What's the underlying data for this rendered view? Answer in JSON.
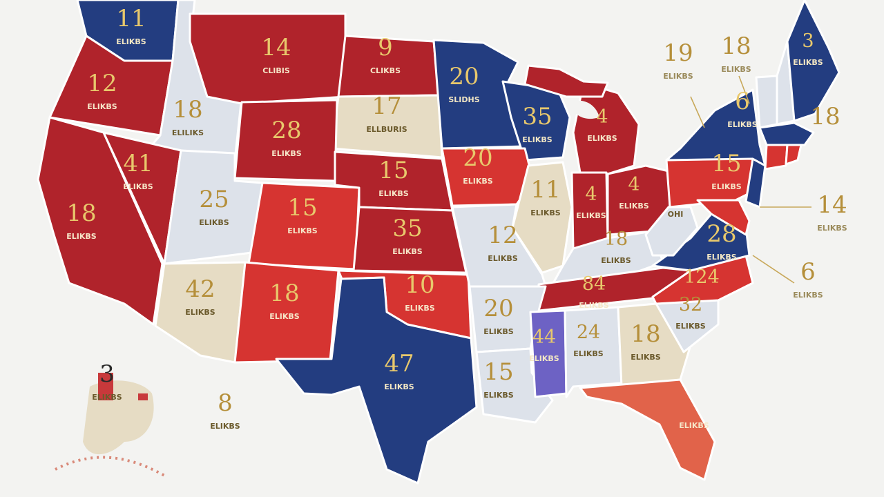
{
  "colors": {
    "red": "#b0232b",
    "bright_red": "#d63431",
    "navy": "#233d80",
    "light": "#dde2ea",
    "tan": "#e6dcc4",
    "purple": "#6d62c4",
    "orange": "#e1634a",
    "gold": "#e8c86c",
    "gold_dark": "#b58f3a"
  },
  "states": [
    {
      "id": "wa",
      "number": "11",
      "text": "ELIKBS"
    },
    {
      "id": "or",
      "number": "12",
      "text": "ELIKBS"
    },
    {
      "id": "id",
      "number": "18",
      "text": "ELILIKS"
    },
    {
      "id": "mt",
      "number": "14",
      "text": "CLIBIS"
    },
    {
      "id": "nd",
      "number": "9",
      "text": "CLIKBS"
    },
    {
      "id": "mn",
      "number": "20",
      "text": "SLIDHS"
    },
    {
      "id": "sd",
      "number": "17",
      "text": "ELLBURIS"
    },
    {
      "id": "wy",
      "number": "28",
      "text": "ELIKBS"
    },
    {
      "id": "nv",
      "number": "41",
      "text": "ELIKBS"
    },
    {
      "id": "ca",
      "number": "18",
      "text": "ELIKBS"
    },
    {
      "id": "ut",
      "number": "25",
      "text": "ELIKBS"
    },
    {
      "id": "co",
      "number": "15",
      "text": "ELIKBS"
    },
    {
      "id": "ne",
      "number": "15",
      "text": "ELIKBS"
    },
    {
      "id": "ks",
      "number": "35",
      "text": "ELIKBS"
    },
    {
      "id": "az",
      "number": "42",
      "text": "ELIKBS"
    },
    {
      "id": "nm",
      "number": "18",
      "text": "ELIKBS"
    },
    {
      "id": "ok",
      "number": "10",
      "text": "ELIKBS"
    },
    {
      "id": "tx",
      "number": "47",
      "text": "ELIKBS"
    },
    {
      "id": "ia",
      "number": "20",
      "text": "ELIKBS"
    },
    {
      "id": "wi",
      "number": "35",
      "text": "ELIKBS"
    },
    {
      "id": "il",
      "number": "11",
      "text": "ELIKBS"
    },
    {
      "id": "mo",
      "number": "12",
      "text": "ELIKBS"
    },
    {
      "id": "ar",
      "number": "20",
      "text": "ELIKBS"
    },
    {
      "id": "la",
      "number": "15",
      "text": "ELIKBS"
    },
    {
      "id": "ms",
      "number": "44",
      "text": "ELIKBS"
    },
    {
      "id": "al",
      "number": "24",
      "text": "ELIKBS"
    },
    {
      "id": "ga",
      "number": "18",
      "text": "ELIKBS"
    },
    {
      "id": "fl",
      "number": "",
      "text": "ELIKBS"
    },
    {
      "id": "mi",
      "number": "4",
      "text": "ELIKBS"
    },
    {
      "id": "in",
      "number": "4",
      "text": "ELIKBS"
    },
    {
      "id": "oh",
      "number": "4",
      "text": "ELIKBS"
    },
    {
      "id": "ky",
      "number": "18",
      "text": "ELIKBS"
    },
    {
      "id": "tn",
      "number": "84",
      "text": "ELIKBS"
    },
    {
      "id": "nc",
      "number": "124",
      "text": ""
    },
    {
      "id": "sc",
      "number": "32",
      "text": "ELIKBS"
    },
    {
      "id": "va",
      "number": "28",
      "text": "ELIKBS"
    },
    {
      "id": "wv",
      "number": "",
      "text": "OHI"
    },
    {
      "id": "pa",
      "number": "15",
      "text": "ELIKBS"
    },
    {
      "id": "ny",
      "number": "6",
      "text": "ELIKBS"
    },
    {
      "id": "me",
      "number": "3",
      "text": "ELIKBS"
    },
    {
      "id": "nj",
      "number": "",
      "text": ""
    },
    {
      "id": "vt",
      "number": "",
      "text": ""
    },
    {
      "id": "nh",
      "number": "",
      "text": ""
    },
    {
      "id": "ma",
      "number": "",
      "text": ""
    },
    {
      "id": "ri",
      "number": "",
      "text": ""
    },
    {
      "id": "ct",
      "number": "",
      "text": ""
    },
    {
      "id": "md",
      "number": "",
      "text": ""
    },
    {
      "id": "ak",
      "number": "3",
      "text": "ELIKBS"
    },
    {
      "id": "hi",
      "number": "8",
      "text": "ELIKBS"
    }
  ],
  "callouts": [
    {
      "number": "19",
      "text": "ELIKBS"
    },
    {
      "number": "18",
      "text": "ELIKBS"
    },
    {
      "number": "18",
      "text": ""
    },
    {
      "number": "14",
      "text": "ELIKBS"
    },
    {
      "number": "6",
      "text": "ELIKBS"
    }
  ]
}
